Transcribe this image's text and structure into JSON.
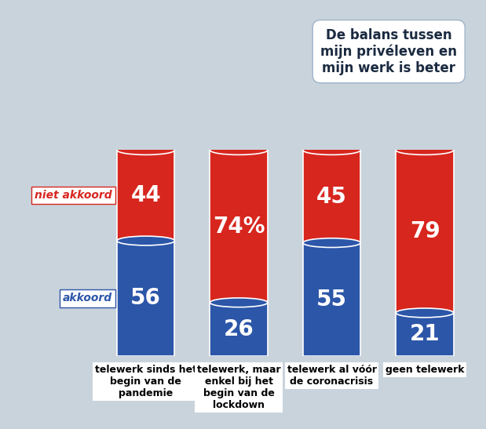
{
  "chart_data": {
    "type": "bar",
    "stacked": true,
    "data_labels": true,
    "tick_labels": "x",
    "title": "De balans tussen mijn privéleven en mijn werk is beter",
    "categories": [
      "telewerk sinds het begin van de pandemie",
      "telewerk, maar enkel bij het begin van de lockdown",
      "telewerk al vóór de coronacrisis",
      "geen telewerk"
    ],
    "ylim": [
      0,
      100
    ],
    "series": [
      {
        "name": "akkoord",
        "color": "#2c56a8",
        "values": [
          56,
          26,
          55,
          21
        ]
      },
      {
        "name": "niet akkoord",
        "color": "#d7261e",
        "values": [
          44,
          74,
          45,
          79
        ],
        "value_labels": [
          "44",
          "74%",
          "45",
          "79"
        ]
      }
    ]
  }
}
